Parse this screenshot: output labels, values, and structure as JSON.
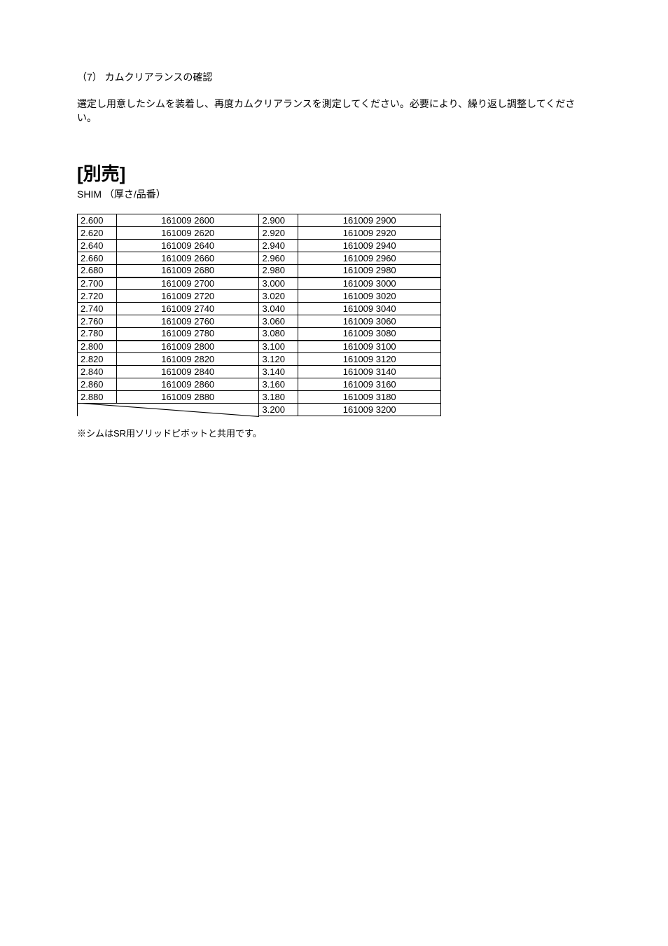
{
  "section": {
    "number_title": "（7） カムクリアランスの確認",
    "body": "選定し用意したシムを装着し、再度カムクリアランスを測定してください。必要により、繰り返し調整してください。"
  },
  "heading": {
    "main": "[別売]",
    "sub": "SHIM （厚さ/品番）"
  },
  "table": {
    "rows": [
      {
        "lt": "2.600",
        "lp": "161009 2600",
        "rt": "2.900",
        "rp": "161009 2900",
        "group_start": false
      },
      {
        "lt": "2.620",
        "lp": "161009 2620",
        "rt": "2.920",
        "rp": "161009 2920",
        "group_start": false
      },
      {
        "lt": "2.640",
        "lp": "161009 2640",
        "rt": "2.940",
        "rp": "161009 2940",
        "group_start": false
      },
      {
        "lt": "2.660",
        "lp": "161009 2660",
        "rt": "2.960",
        "rp": "161009 2960",
        "group_start": false
      },
      {
        "lt": "2.680",
        "lp": "161009 2680",
        "rt": "2.980",
        "rp": "161009 2980",
        "group_start": false
      },
      {
        "lt": "2.700",
        "lp": "161009 2700",
        "rt": "3.000",
        "rp": "161009 3000",
        "group_start": true
      },
      {
        "lt": "2.720",
        "lp": "161009 2720",
        "rt": "3.020",
        "rp": "161009 3020",
        "group_start": false
      },
      {
        "lt": "2.740",
        "lp": "161009 2740",
        "rt": "3.040",
        "rp": "161009 3040",
        "group_start": false
      },
      {
        "lt": "2.760",
        "lp": "161009 2760",
        "rt": "3.060",
        "rp": "161009 3060",
        "group_start": false
      },
      {
        "lt": "2.780",
        "lp": "161009 2780",
        "rt": "3.080",
        "rp": "161009 3080",
        "group_start": false
      },
      {
        "lt": "2.800",
        "lp": "161009 2800",
        "rt": "3.100",
        "rp": "161009 3100",
        "group_start": true
      },
      {
        "lt": "2.820",
        "lp": "161009 2820",
        "rt": "3.120",
        "rp": "161009 3120",
        "group_start": false
      },
      {
        "lt": "2.840",
        "lp": "161009 2840",
        "rt": "3.140",
        "rp": "161009 3140",
        "group_start": false
      },
      {
        "lt": "2.860",
        "lp": "161009 2860",
        "rt": "3.160",
        "rp": "161009 3160",
        "group_start": false
      },
      {
        "lt": "2.880",
        "lp": "161009 2880",
        "rt": "3.180",
        "rp": "161009 3180",
        "group_start": false
      }
    ],
    "last_row": {
      "rt": "3.200",
      "rp": "161009 3200"
    }
  },
  "footnote": "※シムはSR用ソリッドピボットと共用です。",
  "colors": {
    "text": "#000000",
    "border": "#000000",
    "background": "#ffffff"
  },
  "typography": {
    "heading_fontsize": 26,
    "body_fontsize": 14,
    "table_fontsize": 13,
    "footnote_fontsize": 13
  }
}
